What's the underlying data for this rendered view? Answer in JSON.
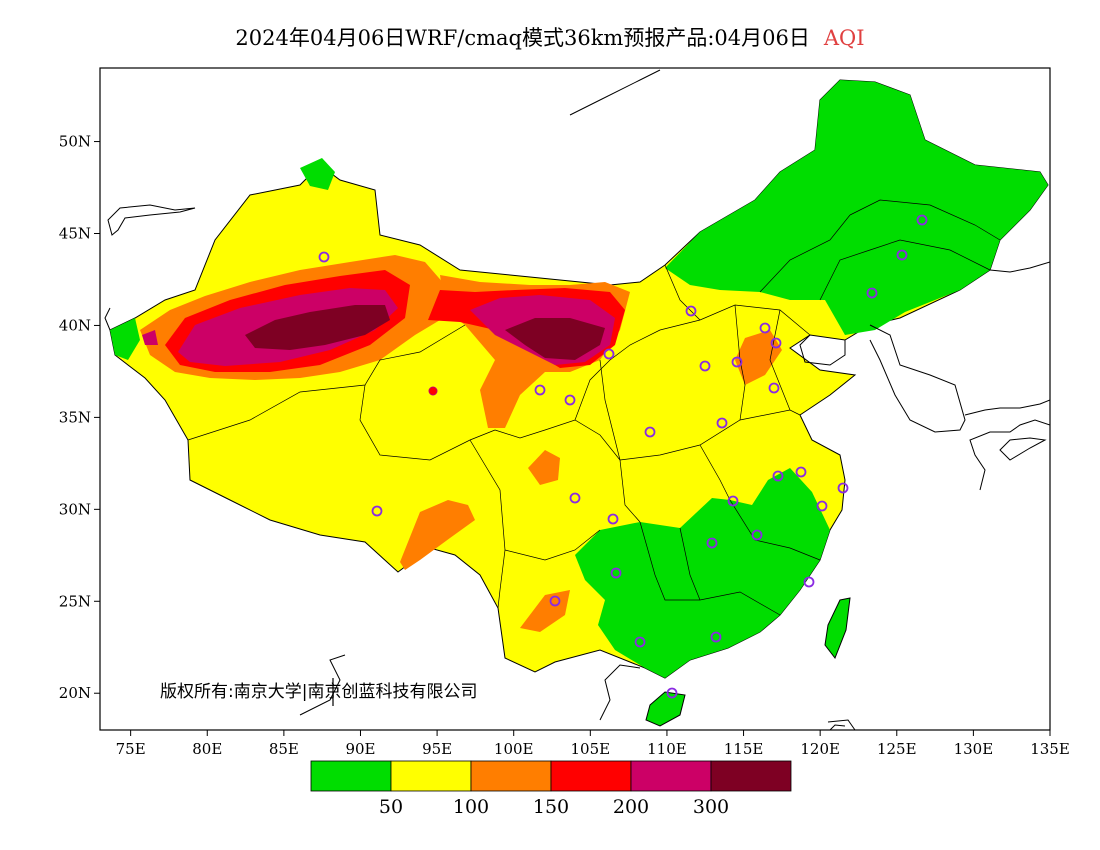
{
  "title": {
    "text": "2024年04月06日WRF/cmaq模式36km预报产品:04月06日",
    "variable": "AQI"
  },
  "copyright": "版权所有:南京大学|南京创蓝科技有限公司",
  "axes": {
    "lon_ticks": [
      "75E",
      "80E",
      "85E",
      "90E",
      "95E",
      "100E",
      "105E",
      "110E",
      "115E",
      "120E",
      "125E",
      "130E",
      "135E"
    ],
    "lat_ticks": [
      "20N",
      "25N",
      "30N",
      "35N",
      "40N",
      "45N",
      "50N"
    ],
    "lon_range": [
      73,
      135
    ],
    "lat_range": [
      18,
      54
    ]
  },
  "legend": {
    "colors": [
      "#00dd00",
      "#ffff00",
      "#ff7e00",
      "#ff0000",
      "#cc0066",
      "#7e0023"
    ],
    "thresholds": [
      "50",
      "100",
      "150",
      "200",
      "300"
    ]
  },
  "station_marker_color": "#8a2be2"
}
